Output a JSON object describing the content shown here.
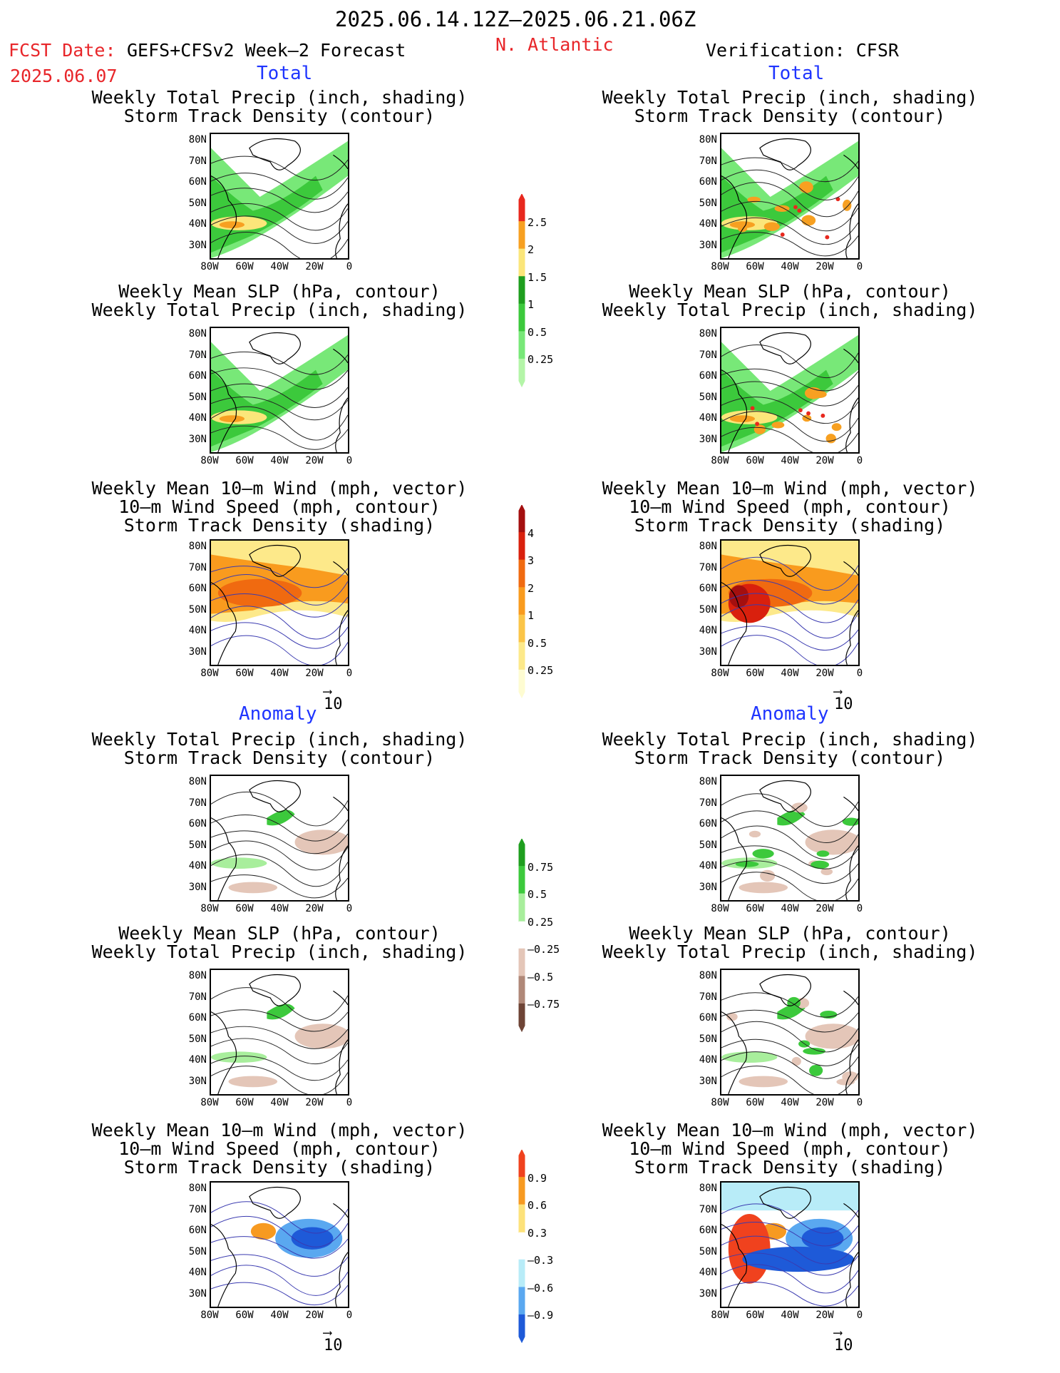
{
  "header": {
    "period": "2025.06.14.12Z–2025.06.21.06Z",
    "fcst_label": "FCST Date:",
    "fcst_date": "2025.06.07",
    "model": "GEFS+CFSv2 Week–2 Forecast",
    "region": "N. Atlantic",
    "verification": "Verification: CFSR"
  },
  "sections": {
    "total": "Total",
    "anomaly": "Anomaly"
  },
  "panel_titles": {
    "precip_storm": [
      "Weekly Total Precip (inch, shading)",
      "Storm Track Density (contour)"
    ],
    "slp_precip": [
      "Weekly Mean SLP (hPa, contour)",
      "Weekly Total Precip (inch, shading)"
    ],
    "wind_storm": [
      "Weekly Mean 10–m Wind (mph, vector)",
      "10–m Wind Speed (mph, contour)",
      "Storm Track Density (shading)"
    ]
  },
  "axes": {
    "lat_ticks": [
      "80N",
      "70N",
      "60N",
      "50N",
      "40N",
      "30N"
    ],
    "lon_ticks": [
      "80W",
      "60W",
      "40W",
      "20W",
      "0"
    ]
  },
  "vector_ref": "10",
  "chart_data": [
    {
      "type": "heatmap",
      "name_hint": "Total precip color scale",
      "levels": [
        "0.25",
        "0.5",
        "1",
        "1.5",
        "2",
        "2.5"
      ],
      "colors": [
        "#b4f5a8",
        "#78e878",
        "#3cc93c",
        "#1e9e1e",
        "#fbe67a",
        "#f7a021",
        "#e8281e"
      ]
    },
    {
      "type": "heatmap",
      "name_hint": "Storm track density color scale",
      "levels": [
        "0.25",
        "0.5",
        "1",
        "2",
        "3",
        "4"
      ],
      "colors": [
        "#fefcd2",
        "#fde98a",
        "#fbc548",
        "#f99b1e",
        "#f06a10",
        "#d9200d",
        "#a40f0f"
      ]
    },
    {
      "type": "heatmap",
      "name_hint": "Precip anomaly color scale",
      "levels": [
        "0.75",
        "0.5",
        "0.25",
        "–0.25",
        "–0.5",
        "–0.75"
      ],
      "colors": [
        "#1e9e1e",
        "#3cc93c",
        "#a8ee9c",
        "#ffffff",
        "#e4c6b8",
        "#b08878",
        "#6e4436"
      ]
    },
    {
      "type": "heatmap",
      "name_hint": "Storm track anomaly color scale",
      "levels": [
        "0.9",
        "0.6",
        "0.3",
        "–0.3",
        "–0.6",
        "–0.9"
      ],
      "colors": [
        "#f0421e",
        "#f79a21",
        "#fde27a",
        "#ffffff",
        "#b8ecf8",
        "#5aa8f0",
        "#1e5ad8"
      ]
    }
  ]
}
